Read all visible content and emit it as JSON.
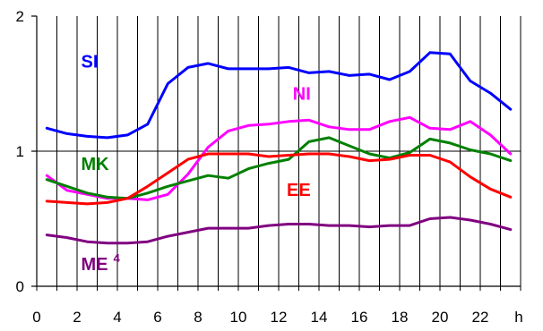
{
  "chart_data": {
    "type": "line",
    "title": "",
    "xlabel": "",
    "ylabel": "",
    "x_unit": "h",
    "xlim": [
      0,
      24
    ],
    "ylim": [
      0,
      2
    ],
    "xticks": [
      0,
      2,
      4,
      6,
      8,
      10,
      12,
      14,
      16,
      18,
      20,
      22
    ],
    "yticks": [
      0,
      1,
      2
    ],
    "grid": "vertical lines every 1 hour; horizontal line at 1",
    "x": [
      0.5,
      1.5,
      2.5,
      3.5,
      4.5,
      5.5,
      6.5,
      7.5,
      8.5,
      9.5,
      10.5,
      11.5,
      12.5,
      13.5,
      14.5,
      15.5,
      16.5,
      17.5,
      18.5,
      19.5,
      20.5,
      21.5,
      22.5,
      23.5
    ],
    "series": [
      {
        "name": "SI",
        "color": "#0000ff",
        "label_pos": [
          2.2,
          1.62
        ],
        "values": [
          1.17,
          1.13,
          1.11,
          1.1,
          1.12,
          1.2,
          1.5,
          1.62,
          1.65,
          1.61,
          1.61,
          1.61,
          1.62,
          1.58,
          1.59,
          1.56,
          1.57,
          1.53,
          1.59,
          1.73,
          1.72,
          1.52,
          1.43,
          1.31
        ]
      },
      {
        "name": "NI",
        "color": "#ff00ff",
        "label_pos": [
          12.7,
          1.38
        ],
        "values": [
          0.82,
          0.71,
          0.68,
          0.65,
          0.65,
          0.64,
          0.68,
          0.83,
          1.03,
          1.15,
          1.19,
          1.2,
          1.22,
          1.23,
          1.18,
          1.16,
          1.16,
          1.22,
          1.25,
          1.17,
          1.16,
          1.22,
          1.12,
          0.98
        ]
      },
      {
        "name": "MK",
        "color": "#008000",
        "label_pos": [
          2.2,
          0.86
        ],
        "values": [
          0.79,
          0.74,
          0.69,
          0.66,
          0.65,
          0.69,
          0.74,
          0.78,
          0.82,
          0.8,
          0.87,
          0.91,
          0.94,
          1.07,
          1.1,
          1.04,
          0.98,
          0.95,
          0.99,
          1.09,
          1.06,
          1.01,
          0.98,
          0.93
        ]
      },
      {
        "name": "EE",
        "color": "#ff0000",
        "label_pos": [
          12.4,
          0.67
        ],
        "values": [
          0.63,
          0.62,
          0.61,
          0.62,
          0.65,
          0.74,
          0.84,
          0.94,
          0.98,
          0.98,
          0.98,
          0.96,
          0.97,
          0.98,
          0.98,
          0.96,
          0.93,
          0.94,
          0.97,
          0.97,
          0.92,
          0.81,
          0.72,
          0.66
        ]
      },
      {
        "name": "ME",
        "color": "#800080",
        "superscript": "4",
        "label_pos": [
          2.2,
          0.12
        ],
        "values": [
          0.38,
          0.36,
          0.33,
          0.32,
          0.32,
          0.33,
          0.37,
          0.4,
          0.43,
          0.43,
          0.43,
          0.45,
          0.46,
          0.46,
          0.45,
          0.45,
          0.44,
          0.45,
          0.45,
          0.5,
          0.51,
          0.49,
          0.46,
          0.42
        ]
      }
    ]
  }
}
